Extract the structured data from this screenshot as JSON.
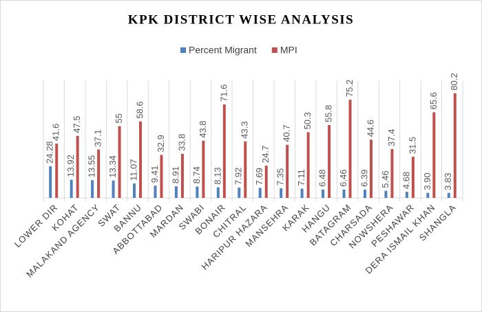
{
  "chart_data": {
    "type": "bar",
    "title": "KPK DISTRICT WISE ANALYSIS",
    "categories": [
      "LOWER DIR",
      "KOHAT",
      "MALAKAND AGENCY",
      "SWAT",
      "BANNU",
      "ABBOTTABAD",
      "MARDAN",
      "SWABI",
      "BONAIR",
      "CHITRAL",
      "HARIPUR HAZARA",
      "MANSEHRA",
      "KARAK",
      "HANGU",
      "BATAGRAM",
      "CHARSADA",
      "NOWSHERA",
      "PESHAWAR",
      "DERA ISMAIL KHAN",
      "SHANGLA"
    ],
    "series": [
      {
        "name": "Percent Migrant",
        "color": "#4f81bd",
        "values": [
          24.28,
          13.92,
          13.55,
          13.34,
          11.07,
          9.41,
          8.91,
          8.74,
          8.13,
          7.92,
          7.69,
          7.35,
          7.11,
          6.48,
          6.46,
          6.39,
          5.46,
          4.68,
          3.9,
          3.83
        ],
        "value_labels": [
          "24.28",
          "13.92",
          "13.55",
          "13.34",
          "11.07",
          "9.41",
          "8.91",
          "8.74",
          "8.13",
          "7.92",
          "7.69",
          "7.35",
          "7.11",
          "6.48",
          "6.46",
          "6.39",
          "5.46",
          "4.68",
          "3.90",
          "3.83"
        ]
      },
      {
        "name": "MPI",
        "color": "#c0504d",
        "values": [
          41.6,
          47.5,
          37.1,
          55,
          58.6,
          32.9,
          33.8,
          43.8,
          71.6,
          43.3,
          24.7,
          40.7,
          50.3,
          55.8,
          75.2,
          44.6,
          37.4,
          31.5,
          65.6,
          80.2
        ]
      }
    ],
    "ylim": [
      0,
      90
    ]
  }
}
